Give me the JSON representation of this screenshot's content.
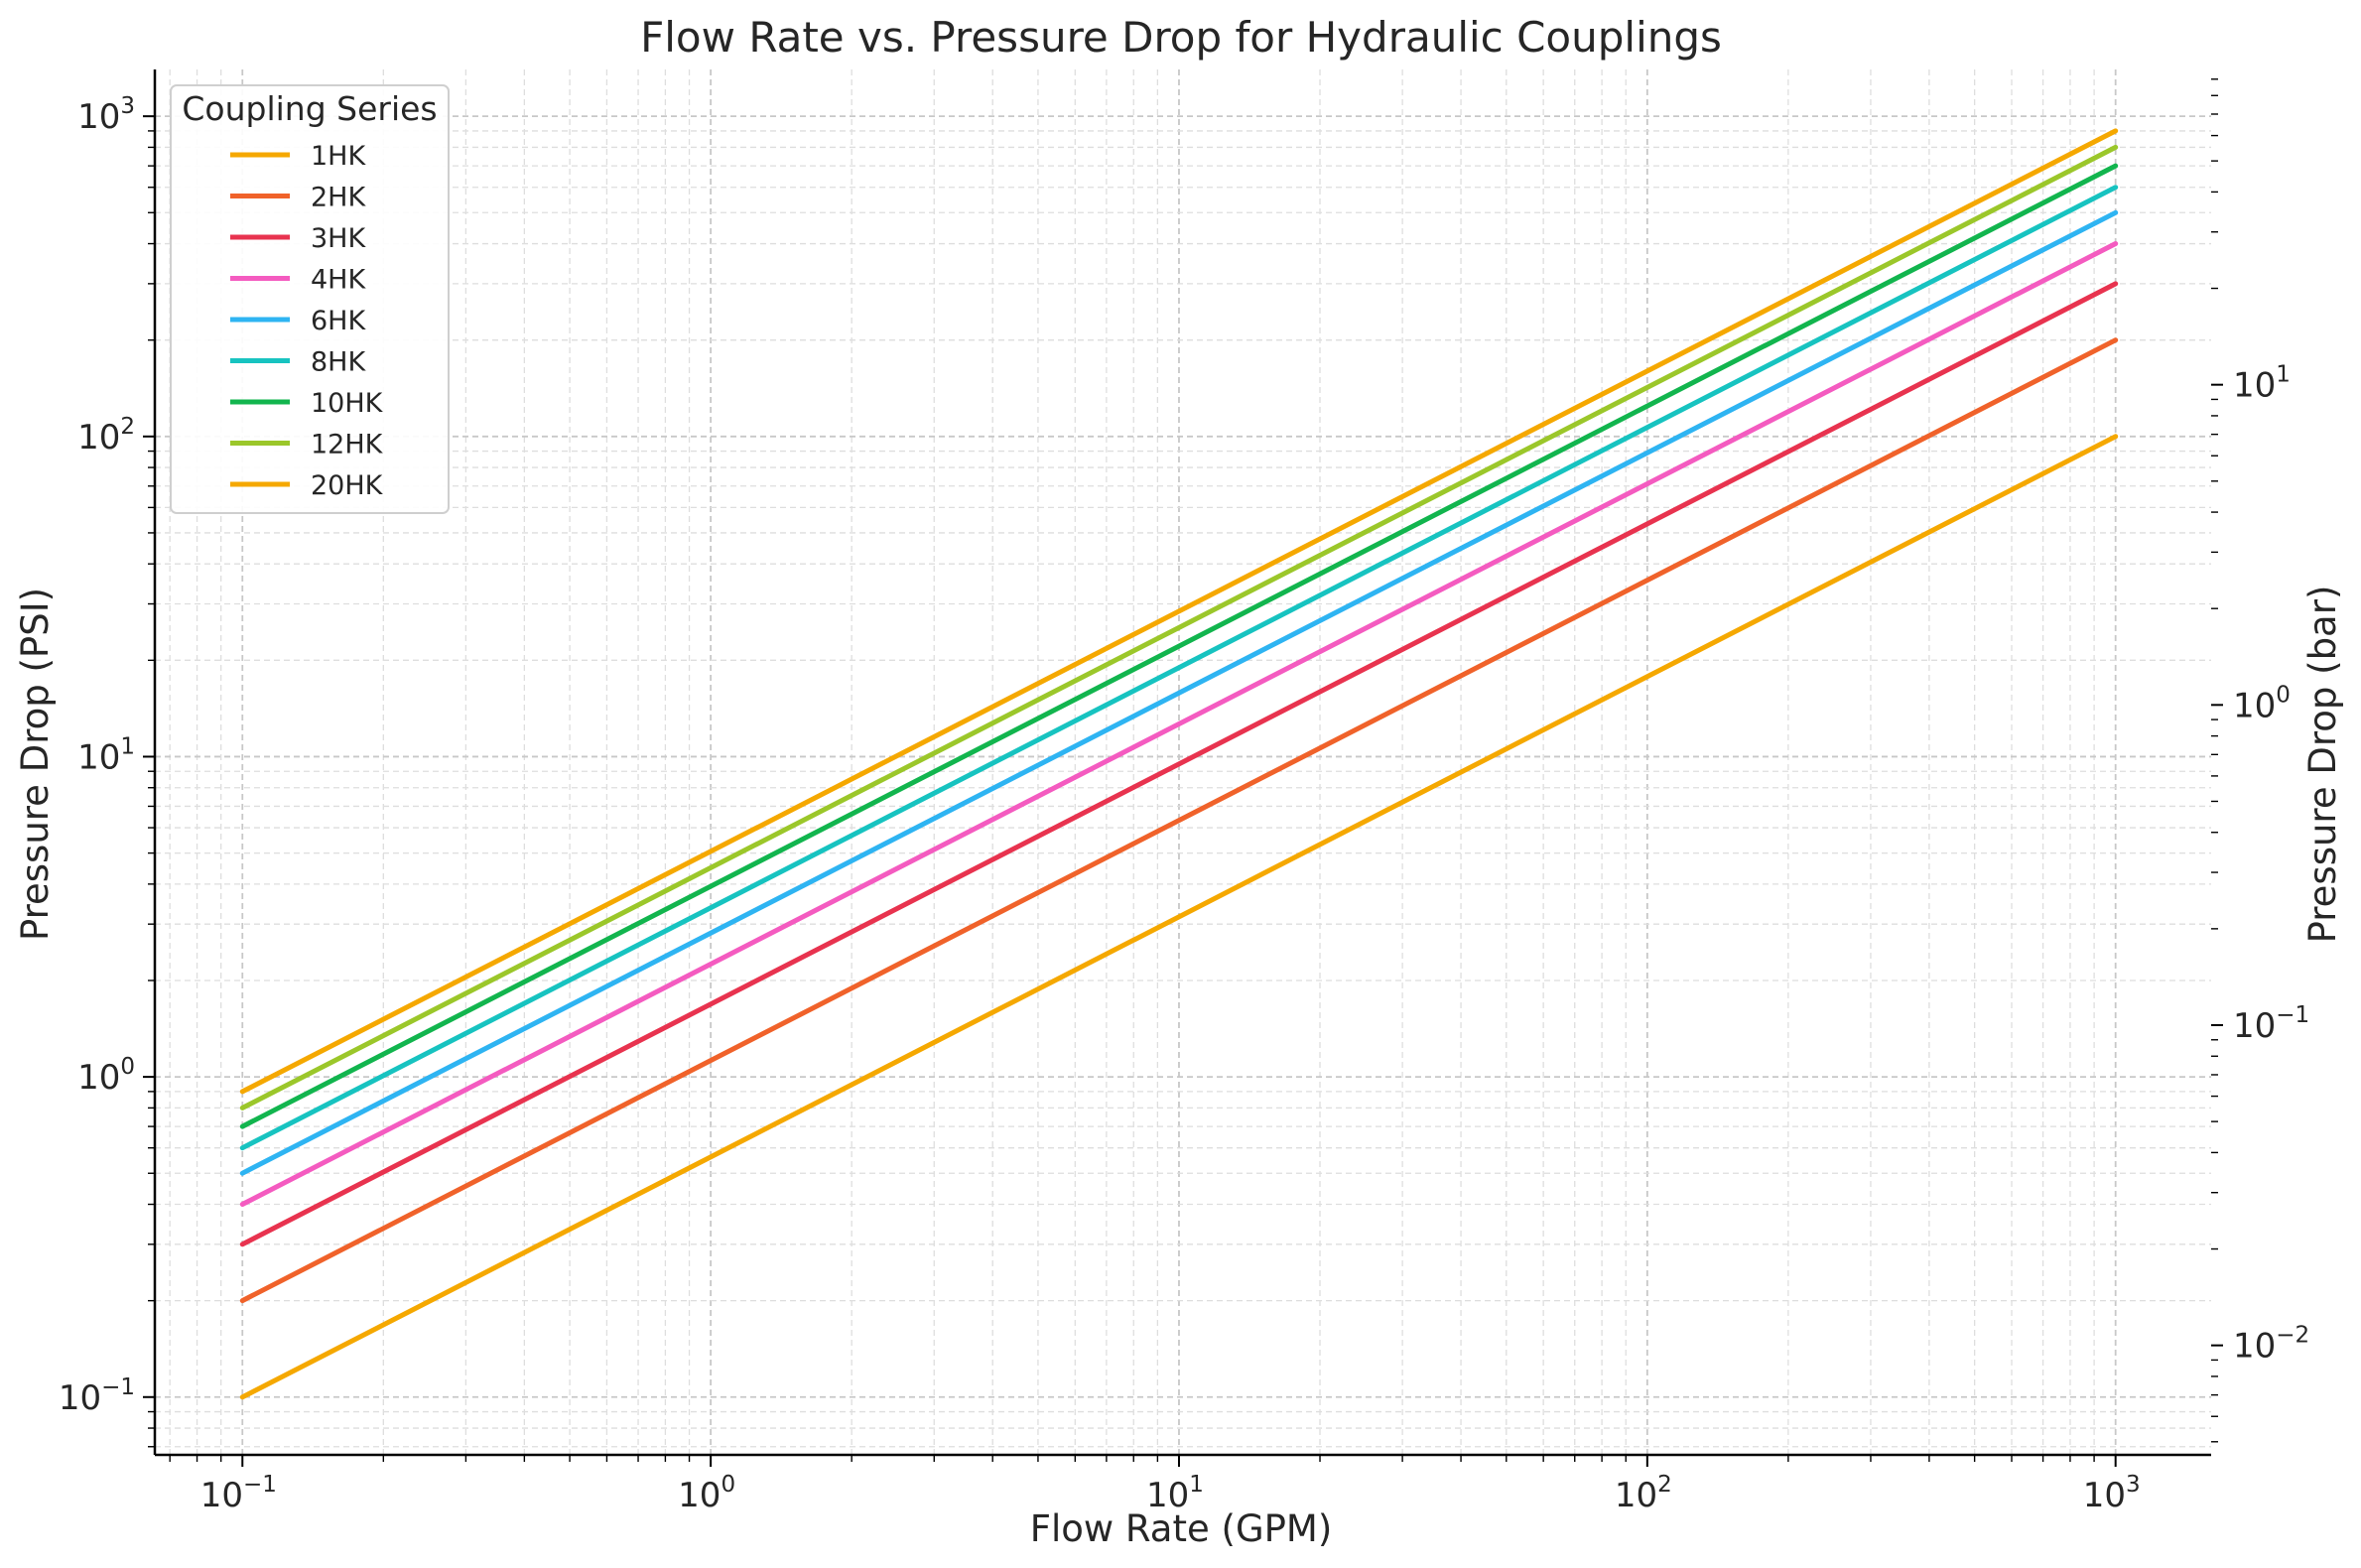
{
  "chart_data": {
    "type": "line",
    "title": "Flow Rate vs. Pressure Drop for Hydraulic Couplings",
    "xlabel": "Flow Rate (GPM)",
    "ylabel": "Pressure Drop (PSI)",
    "ylabel_right": "Pressure Drop (bar)",
    "x_scale": "log",
    "y_scale": "log",
    "xlim": [
      0.065,
      1600
    ],
    "ylim": [
      0.066,
      1400
    ],
    "ylim_right": [
      0.00455,
      96.5
    ],
    "x_ticks": [
      "10^-1",
      "10^0",
      "10^1",
      "10^2",
      "10^3"
    ],
    "y_ticks": [
      "10^-1",
      "10^0",
      "10^1",
      "10^2",
      "10^3"
    ],
    "y_ticks_right": [
      "10^-2",
      "10^-1",
      "10^0",
      "10^1"
    ],
    "grid": "major and minor, dashed",
    "legend": {
      "title": "Coupling Series",
      "placement": "top-left"
    },
    "series": [
      {
        "name": "1HK",
        "color": "#F5A800",
        "x": [
          0.1,
          1000
        ],
        "y": [
          0.1,
          100
        ]
      },
      {
        "name": "2HK",
        "color": "#F0622A",
        "x": [
          0.1,
          1000
        ],
        "y": [
          0.2,
          200
        ]
      },
      {
        "name": "3HK",
        "color": "#E8334F",
        "x": [
          0.1,
          1000
        ],
        "y": [
          0.3,
          300
        ]
      },
      {
        "name": "4HK",
        "color": "#F45BC0",
        "x": [
          0.1,
          1000
        ],
        "y": [
          0.4,
          400
        ]
      },
      {
        "name": "6HK",
        "color": "#2EB4F2",
        "x": [
          0.1,
          1000
        ],
        "y": [
          0.5,
          500
        ]
      },
      {
        "name": "8HK",
        "color": "#17C3C0",
        "x": [
          0.1,
          1000
        ],
        "y": [
          0.6,
          600
        ]
      },
      {
        "name": "10HK",
        "color": "#12B54E",
        "x": [
          0.1,
          1000
        ],
        "y": [
          0.7,
          700
        ]
      },
      {
        "name": "12HK",
        "color": "#9BC72A",
        "x": [
          0.1,
          1000
        ],
        "y": [
          0.8,
          800
        ]
      },
      {
        "name": "20HK",
        "color": "#F5A800",
        "x": [
          0.1,
          1000
        ],
        "y": [
          0.9,
          900
        ]
      }
    ]
  }
}
